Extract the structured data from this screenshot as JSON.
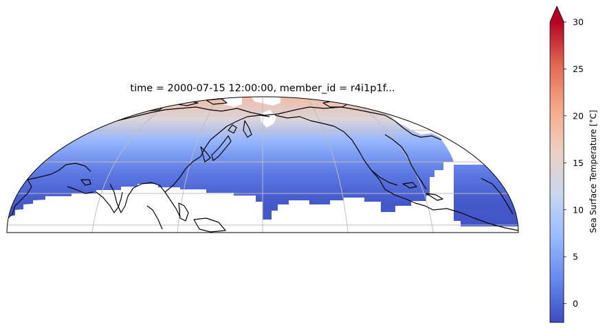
{
  "chart_data": {
    "type": "heatmap",
    "title": "time = 2000-07-15 12:00:00, member_id = r4i1p1f...",
    "projection": "semicircular map projection, northern hemisphere, Pacific-centered",
    "colormap": "coolwarm",
    "colorbar": {
      "label": "Sea Surface Temperature [°C]",
      "ticks": [
        0,
        5,
        10,
        15,
        20,
        25,
        30
      ],
      "range": [
        -2,
        30
      ],
      "extend": "max",
      "placement": "right",
      "colors": [
        "#3b4cc0",
        "#6788ee",
        "#9abbff",
        "#c9d7f0",
        "#edd1c2",
        "#f7a889",
        "#e26952",
        "#b40426"
      ]
    },
    "grid": true,
    "coastlines": true,
    "sst_gradient": [
      {
        "lat": 0,
        "value": -1.5
      },
      {
        "lat": 20,
        "value": -1.0
      },
      {
        "lat": 40,
        "value": 1.5
      },
      {
        "lat": 60,
        "value": 6.5
      },
      {
        "lat": 75,
        "value": 14.0
      },
      {
        "lat": 90,
        "value": 18.5
      }
    ]
  }
}
